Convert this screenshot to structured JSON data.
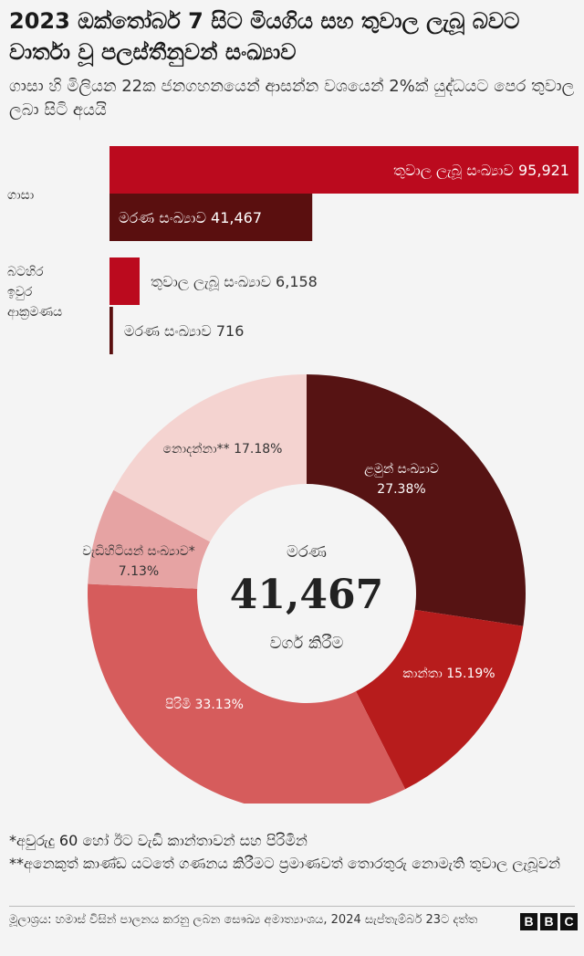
{
  "title": "2023 ඔක්තෝබර් 7 සිට මියගිය සහ තුවාල ලැබූ බවට වාර්තා වූ පලස්තීනුවන් සංඛ්‍යාව",
  "subtitle": "ගාසා හි මිලියන 22ක ජනගහනයෙන් ආසන්න වශයෙන් 2%ක් යුද්ධයට පෙර තුවාල ලබා සිටි අයයි",
  "colors": {
    "injured": "#bb0a1e",
    "deaths": "#5a0f0f",
    "children": "#561313",
    "women": "#b71c1c",
    "men": "#d65c5c",
    "elderly": "#e6a3a3",
    "unknown": "#f4d3d0"
  },
  "chart_data": [
    {
      "type": "bar",
      "orientation": "horizontal",
      "categories": [
        "ගාසා",
        "බටහිර ඉවුර ආක්‍රමණය"
      ],
      "series": [
        {
          "name": "තුවාල ලැබූ සංඛ්‍යාව",
          "values": [
            95921,
            6158
          ],
          "labels": [
            "තුවාල ලැබූ සංඛ්‍යාව 95,921",
            "තුවාල ලැබූ සංඛ්‍යාව 6,158"
          ]
        },
        {
          "name": "මරණ සංඛ්‍යාව",
          "values": [
            41467,
            716
          ],
          "labels": [
            "මරණ සංඛ්‍යාව 41,467",
            "මරණ සංඛ්‍යාව 716"
          ]
        }
      ],
      "xlim": [
        0,
        95921
      ]
    },
    {
      "type": "pie",
      "style": "donut",
      "center_label": "මරණ",
      "center_value": "41,467",
      "center_sublabel": "වර්ග කිරීම",
      "slices": [
        {
          "label": "ළමුන් සංඛ්‍යාව",
          "percent_text": "27.38%",
          "value": 27.38,
          "color_key": "children"
        },
        {
          "label": "කාන්තා",
          "percent_text": "15.19%",
          "value": 15.19,
          "color_key": "women"
        },
        {
          "label": "පිරිමි",
          "percent_text": "33.13%",
          "value": 33.13,
          "color_key": "men"
        },
        {
          "label": "වැඩිහිටියන් සංඛ්‍යාව*",
          "percent_text": "7.13%",
          "value": 7.13,
          "color_key": "elderly"
        },
        {
          "label": "නොදන්නා**",
          "percent_text": "17.18%",
          "value": 17.18,
          "color_key": "unknown"
        }
      ]
    }
  ],
  "footnotes": [
    "*අවුරුදු 60 හෝ ඊට වැඩි කාන්තාවන් සහ පිරිමින්",
    "**අනෙකුත් කාණ්ඩ යටතේ ගණනය කිරීමට ප්‍රමාණවත් තොරතුරු නොමැති තුවාල ලැබූවන්"
  ],
  "source": "මූලාශ්‍රය: හමාස් විසින් පාලනය කරනු ලබන සෞඛ්‍ය අමාත්‍යාංශය, 2024 සැප්තැම්බර් 23ට දත්ත",
  "logo_text": "BBC"
}
